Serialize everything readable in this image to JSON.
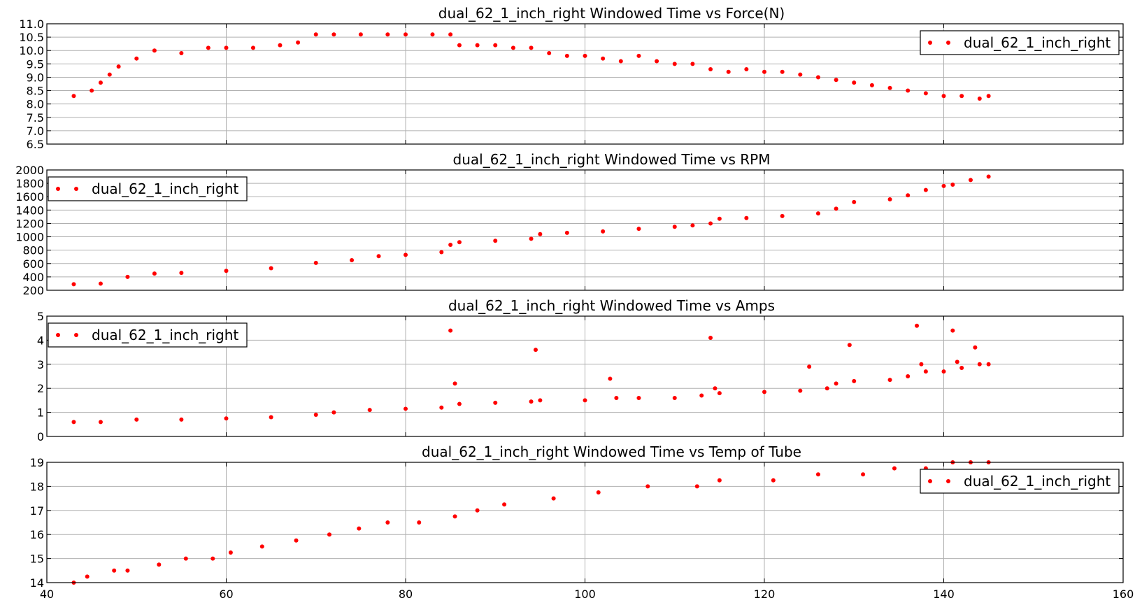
{
  "figure": {
    "x_ticks": [
      "40",
      "60",
      "80",
      "100",
      "120",
      "140",
      "160"
    ],
    "xlim": [
      40,
      160
    ]
  },
  "chart_data": [
    {
      "type": "scatter",
      "title": "dual_62_1_inch_right Windowed Time vs Force(N)",
      "legend": "top-right",
      "grid": true,
      "xlim": [
        40,
        160
      ],
      "ylim": [
        6.5,
        11.0
      ],
      "y_ticks": [
        "6.5",
        "7.0",
        "7.5",
        "8.0",
        "8.5",
        "9.0",
        "9.5",
        "10.0",
        "10.5",
        "11.0"
      ],
      "series": [
        {
          "name": "dual_62_1_inch_right",
          "color": "#ff0000",
          "x": [
            43,
            45,
            46,
            47,
            48,
            50,
            52,
            55,
            58,
            60,
            63,
            66,
            68,
            70,
            72,
            75,
            78,
            80,
            83,
            85,
            86,
            88,
            90,
            92,
            94,
            96,
            98,
            100,
            102,
            104,
            106,
            108,
            110,
            112,
            114,
            116,
            118,
            120,
            122,
            124,
            126,
            128,
            130,
            132,
            134,
            136,
            138,
            140,
            142,
            144,
            145
          ],
          "y": [
            8.3,
            8.5,
            8.8,
            9.1,
            9.4,
            9.7,
            10.0,
            9.9,
            10.1,
            10.1,
            10.1,
            10.2,
            10.3,
            10.6,
            10.6,
            10.6,
            10.6,
            10.6,
            10.6,
            10.6,
            10.2,
            10.2,
            10.2,
            10.1,
            10.1,
            9.9,
            9.8,
            9.8,
            9.7,
            9.6,
            9.8,
            9.6,
            9.5,
            9.5,
            9.3,
            9.2,
            9.3,
            9.2,
            9.2,
            9.1,
            9.0,
            8.9,
            8.8,
            8.7,
            8.6,
            8.5,
            8.4,
            8.3,
            8.3,
            8.2,
            8.3
          ]
        }
      ]
    },
    {
      "type": "scatter",
      "title": "dual_62_1_inch_right Windowed Time vs RPM",
      "legend": "top-left",
      "grid": true,
      "xlim": [
        40,
        160
      ],
      "ylim": [
        200,
        2000
      ],
      "y_ticks": [
        "200",
        "400",
        "600",
        "800",
        "1000",
        "1200",
        "1400",
        "1600",
        "1800",
        "2000"
      ],
      "series": [
        {
          "name": "dual_62_1_inch_right",
          "color": "#ff0000",
          "x": [
            43,
            46,
            49,
            52,
            55,
            60,
            65,
            70,
            74,
            77,
            80,
            84,
            85,
            86,
            90,
            94,
            95,
            98,
            102,
            106,
            110,
            112,
            114,
            115,
            118,
            122,
            126,
            128,
            130,
            134,
            136,
            138,
            140,
            141,
            143,
            145
          ],
          "y": [
            290,
            300,
            400,
            450,
            460,
            490,
            530,
            610,
            650,
            710,
            730,
            770,
            880,
            920,
            940,
            970,
            1040,
            1060,
            1080,
            1120,
            1150,
            1170,
            1200,
            1270,
            1280,
            1310,
            1350,
            1420,
            1520,
            1560,
            1620,
            1700,
            1760,
            1780,
            1850,
            1900
          ]
        }
      ]
    },
    {
      "type": "scatter",
      "title": "dual_62_1_inch_right Windowed Time vs Amps",
      "legend": "top-left",
      "grid": true,
      "xlim": [
        40,
        160
      ],
      "ylim": [
        0,
        5
      ],
      "y_ticks": [
        "0",
        "1",
        "2",
        "3",
        "4",
        "5"
      ],
      "series": [
        {
          "name": "dual_62_1_inch_right",
          "color": "#ff0000",
          "x": [
            43,
            46,
            50,
            55,
            60,
            65,
            70,
            72,
            76,
            80,
            84,
            85,
            85.5,
            86,
            90,
            94,
            94.5,
            95,
            100,
            102.8,
            103.5,
            106,
            110,
            113,
            114,
            114.5,
            115,
            120,
            124,
            125,
            127,
            128,
            129.5,
            130,
            134,
            136,
            137,
            137.5,
            138,
            140,
            141,
            141.5,
            142,
            143.5,
            144,
            145
          ],
          "y": [
            0.6,
            0.6,
            0.7,
            0.7,
            0.75,
            0.8,
            0.9,
            1.0,
            1.1,
            1.15,
            1.2,
            4.4,
            2.2,
            1.35,
            1.4,
            1.45,
            3.6,
            1.5,
            1.5,
            2.4,
            1.6,
            1.6,
            1.6,
            1.7,
            4.1,
            2.0,
            1.8,
            1.85,
            1.9,
            2.9,
            2.0,
            2.2,
            3.8,
            2.3,
            2.35,
            2.5,
            4.6,
            3.0,
            2.7,
            2.7,
            4.4,
            3.1,
            2.85,
            3.7,
            3.0,
            3.0
          ]
        }
      ]
    },
    {
      "type": "scatter",
      "title": "dual_62_1_inch_right Windowed Time vs Temp of Tube",
      "legend": "top-right",
      "grid": true,
      "xlim": [
        40,
        160
      ],
      "ylim": [
        14,
        19
      ],
      "y_ticks": [
        "14",
        "15",
        "16",
        "17",
        "18",
        "19"
      ],
      "series": [
        {
          "name": "dual_62_1_inch_right",
          "color": "#ff0000",
          "x": [
            43,
            44.5,
            47.5,
            49.0,
            52.5,
            55.5,
            58.5,
            60.5,
            64.0,
            67.8,
            71.5,
            74.8,
            78.0,
            81.5,
            85.5,
            88.0,
            91.0,
            96.5,
            101.5,
            107.0,
            112.5,
            115.0,
            121.0,
            126.0,
            131.0,
            134.5,
            138.0,
            141.0,
            143.0,
            145.0
          ],
          "y": [
            14.0,
            14.25,
            14.5,
            14.5,
            14.75,
            15.0,
            15.0,
            15.25,
            15.5,
            15.75,
            16.0,
            16.25,
            16.5,
            16.5,
            16.75,
            17.0,
            17.25,
            17.5,
            17.75,
            18.0,
            18.0,
            18.25,
            18.25,
            18.5,
            18.5,
            18.75,
            18.75,
            19.0,
            19.0,
            19.0
          ]
        }
      ]
    }
  ]
}
